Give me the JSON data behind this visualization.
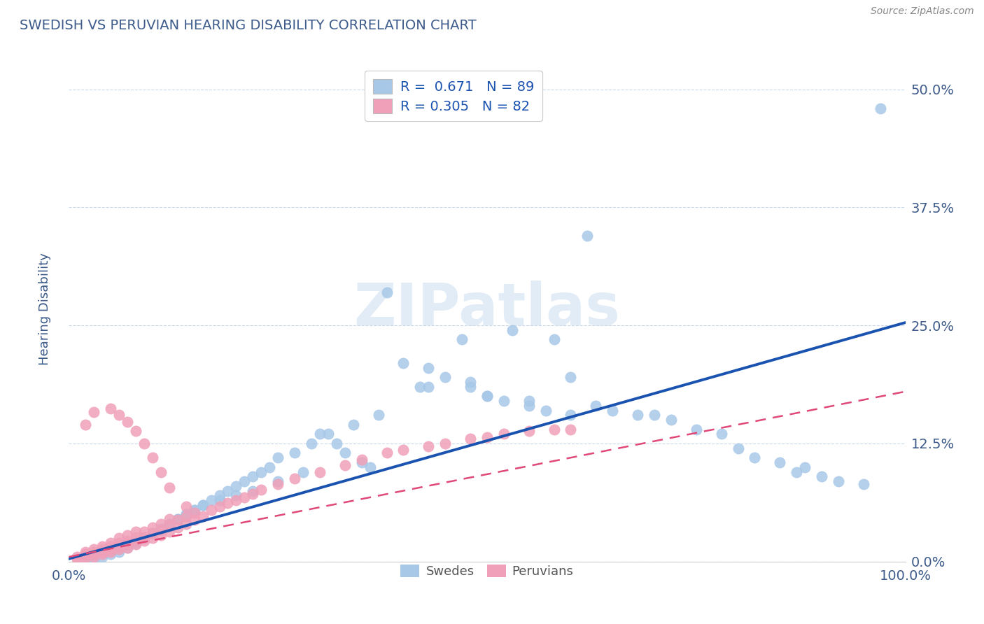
{
  "title": "SWEDISH VS PERUVIAN HEARING DISABILITY CORRELATION CHART",
  "source": "Source: ZipAtlas.com",
  "ylabel": "Hearing Disability",
  "ytick_labels": [
    "0.0%",
    "12.5%",
    "25.0%",
    "37.5%",
    "50.0%"
  ],
  "ytick_values": [
    0.0,
    0.125,
    0.25,
    0.375,
    0.5
  ],
  "xlim": [
    0.0,
    1.0
  ],
  "ylim": [
    0.0,
    0.535
  ],
  "title_color": "#3c5a8a",
  "axis_label_color": "#3c5a8a",
  "tick_color": "#3c5a8a",
  "grid_color": "#c8d8e8",
  "legend_R1": "0.671",
  "legend_N1": "89",
  "legend_R2": "0.305",
  "legend_N2": "82",
  "swede_color": "#a8c8e8",
  "peru_color": "#f0a0b8",
  "swede_line_color": "#1a52b0",
  "peru_line_color": "#e04878",
  "watermark_color": "#d0e0f0",
  "swede_line_y0": 0.003,
  "swede_line_y1": 0.253,
  "peru_line_y0": 0.005,
  "peru_line_y1": 0.18,
  "swedes_x": [
    0.97,
    0.62,
    0.38,
    0.4,
    0.43,
    0.45,
    0.48,
    0.5,
    0.52,
    0.55,
    0.57,
    0.6,
    0.63,
    0.65,
    0.68,
    0.7,
    0.72,
    0.75,
    0.78,
    0.8,
    0.82,
    0.85,
    0.87,
    0.88,
    0.9,
    0.92,
    0.95,
    0.3,
    0.32,
    0.33,
    0.35,
    0.36,
    0.28,
    0.25,
    0.22,
    0.2,
    0.18,
    0.16,
    0.15,
    0.14,
    0.13,
    0.12,
    0.11,
    0.1,
    0.09,
    0.08,
    0.07,
    0.06,
    0.05,
    0.04,
    0.03,
    0.02,
    0.03,
    0.04,
    0.05,
    0.06,
    0.07,
    0.08,
    0.09,
    0.1,
    0.11,
    0.12,
    0.13,
    0.14,
    0.15,
    0.16,
    0.17,
    0.18,
    0.19,
    0.2,
    0.21,
    0.22,
    0.23,
    0.24,
    0.25,
    0.27,
    0.29,
    0.31,
    0.34,
    0.37,
    0.42,
    0.47,
    0.53,
    0.58,
    0.48,
    0.43,
    0.5,
    0.55,
    0.6
  ],
  "swedes_y": [
    0.48,
    0.345,
    0.285,
    0.21,
    0.205,
    0.195,
    0.185,
    0.175,
    0.17,
    0.165,
    0.16,
    0.155,
    0.165,
    0.16,
    0.155,
    0.155,
    0.15,
    0.14,
    0.135,
    0.12,
    0.11,
    0.105,
    0.095,
    0.1,
    0.09,
    0.085,
    0.082,
    0.135,
    0.125,
    0.115,
    0.105,
    0.1,
    0.095,
    0.085,
    0.075,
    0.07,
    0.065,
    0.06,
    0.055,
    0.05,
    0.045,
    0.04,
    0.035,
    0.03,
    0.025,
    0.02,
    0.015,
    0.01,
    0.008,
    0.005,
    0.003,
    0.002,
    0.008,
    0.01,
    0.012,
    0.015,
    0.018,
    0.02,
    0.025,
    0.03,
    0.035,
    0.04,
    0.045,
    0.05,
    0.055,
    0.06,
    0.065,
    0.07,
    0.075,
    0.08,
    0.085,
    0.09,
    0.095,
    0.1,
    0.11,
    0.115,
    0.125,
    0.135,
    0.145,
    0.155,
    0.185,
    0.235,
    0.245,
    0.235,
    0.19,
    0.185,
    0.175,
    0.17,
    0.195
  ],
  "peruvians_x": [
    0.01,
    0.01,
    0.02,
    0.02,
    0.02,
    0.02,
    0.03,
    0.03,
    0.03,
    0.03,
    0.04,
    0.04,
    0.04,
    0.04,
    0.05,
    0.05,
    0.05,
    0.05,
    0.06,
    0.06,
    0.06,
    0.06,
    0.07,
    0.07,
    0.07,
    0.07,
    0.08,
    0.08,
    0.08,
    0.08,
    0.09,
    0.09,
    0.09,
    0.1,
    0.1,
    0.1,
    0.11,
    0.11,
    0.11,
    0.12,
    0.12,
    0.12,
    0.13,
    0.13,
    0.14,
    0.14,
    0.15,
    0.15,
    0.16,
    0.17,
    0.18,
    0.19,
    0.2,
    0.21,
    0.22,
    0.23,
    0.25,
    0.27,
    0.3,
    0.33,
    0.35,
    0.38,
    0.4,
    0.43,
    0.45,
    0.48,
    0.5,
    0.52,
    0.55,
    0.58,
    0.6,
    0.02,
    0.03,
    0.05,
    0.06,
    0.07,
    0.08,
    0.09,
    0.1,
    0.11,
    0.12,
    0.14
  ],
  "peruvians_y": [
    0.003,
    0.005,
    0.004,
    0.006,
    0.008,
    0.01,
    0.005,
    0.008,
    0.01,
    0.013,
    0.008,
    0.01,
    0.013,
    0.016,
    0.01,
    0.013,
    0.016,
    0.02,
    0.013,
    0.016,
    0.02,
    0.025,
    0.015,
    0.018,
    0.022,
    0.028,
    0.018,
    0.022,
    0.026,
    0.032,
    0.022,
    0.026,
    0.032,
    0.025,
    0.03,
    0.036,
    0.028,
    0.033,
    0.04,
    0.032,
    0.038,
    0.045,
    0.036,
    0.044,
    0.04,
    0.048,
    0.044,
    0.052,
    0.048,
    0.055,
    0.058,
    0.062,
    0.065,
    0.068,
    0.072,
    0.076,
    0.082,
    0.088,
    0.095,
    0.102,
    0.108,
    0.115,
    0.118,
    0.122,
    0.125,
    0.13,
    0.132,
    0.135,
    0.138,
    0.14,
    0.14,
    0.145,
    0.158,
    0.162,
    0.155,
    0.148,
    0.138,
    0.125,
    0.11,
    0.095,
    0.078,
    0.058
  ]
}
